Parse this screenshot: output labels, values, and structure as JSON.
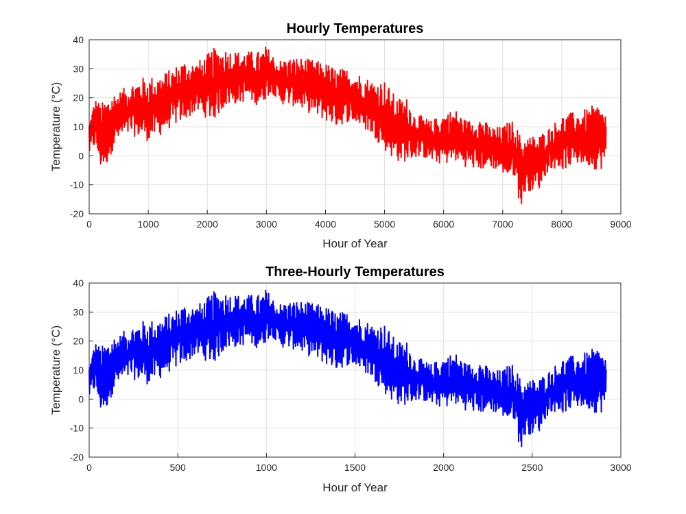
{
  "chart_data": [
    {
      "type": "line",
      "title": "Hourly Temperatures",
      "xlabel": "Hour of Year",
      "ylabel": "Temperature (°C)",
      "xlim": [
        0,
        9000
      ],
      "ylim": [
        -20,
        40
      ],
      "xticks": [
        0,
        1000,
        2000,
        3000,
        4000,
        5000,
        6000,
        7000,
        8000,
        9000
      ],
      "yticks": [
        -20,
        -10,
        0,
        10,
        20,
        30,
        40
      ],
      "grid": true,
      "series": [
        {
          "color": "#ff0000",
          "envelope_x": [
            0,
            100,
            200,
            300,
            400,
            500,
            700,
            900,
            1000,
            1200,
            1400,
            1600,
            1800,
            2000,
            2100,
            2300,
            2500,
            2700,
            2900,
            3000,
            3100,
            3200,
            3500,
            3800,
            4000,
            4200,
            4400,
            4600,
            4800,
            5000,
            5200,
            5400,
            5500,
            5600,
            5800,
            6000,
            6200,
            6400,
            6600,
            6800,
            7000,
            7100,
            7200,
            7300,
            7400,
            7600,
            7800,
            8000,
            8200,
            8400,
            8600,
            8750
          ],
          "envelope_min": [
            0,
            3,
            -5,
            -3,
            2,
            5,
            7,
            6,
            5,
            7,
            10,
            12,
            15,
            13,
            12,
            17,
            18,
            19,
            17,
            20,
            22,
            18,
            17,
            14,
            12,
            10,
            12,
            10,
            7,
            2,
            -2,
            -2,
            -1,
            0,
            -2,
            -3,
            -2,
            -4,
            -5,
            -4,
            -6,
            -8,
            -7,
            -18,
            -12,
            -12,
            -4,
            -5,
            -3,
            -3,
            -5,
            -4
          ],
          "envelope_max": [
            12,
            20,
            18,
            20,
            22,
            22,
            25,
            27,
            27,
            28,
            30,
            33,
            32,
            35,
            37,
            37,
            36,
            36,
            36,
            38,
            35,
            33,
            34,
            33,
            32,
            30,
            30,
            28,
            26,
            26,
            20,
            20,
            15,
            14,
            12,
            15,
            16,
            12,
            14,
            10,
            10,
            12,
            12,
            7,
            7,
            7,
            10,
            14,
            15,
            16,
            18,
            15
          ],
          "end_value": 10
        }
      ]
    },
    {
      "type": "line",
      "title": "Three-Hourly Temperatures",
      "xlabel": "Hour of Year",
      "ylabel": "Temperature (°C)",
      "xlim": [
        0,
        3000
      ],
      "ylim": [
        -20,
        40
      ],
      "xticks": [
        0,
        500,
        1000,
        1500,
        2000,
        2500,
        3000
      ],
      "yticks": [
        -20,
        -10,
        0,
        10,
        20,
        30,
        40
      ],
      "grid": true,
      "series": [
        {
          "color": "#0000ff",
          "envelope_x": [
            0,
            33,
            67,
            100,
            133,
            167,
            233,
            300,
            333,
            400,
            467,
            533,
            600,
            667,
            700,
            767,
            833,
            900,
            967,
            1000,
            1033,
            1067,
            1167,
            1267,
            1333,
            1400,
            1467,
            1533,
            1600,
            1667,
            1733,
            1800,
            1833,
            1867,
            1933,
            2000,
            2067,
            2133,
            2200,
            2267,
            2333,
            2367,
            2400,
            2433,
            2467,
            2533,
            2600,
            2667,
            2733,
            2800,
            2867,
            2917
          ],
          "envelope_min": [
            0,
            3,
            -5,
            -3,
            2,
            5,
            7,
            6,
            5,
            7,
            10,
            12,
            15,
            13,
            12,
            17,
            18,
            19,
            17,
            20,
            22,
            18,
            17,
            14,
            12,
            10,
            12,
            10,
            7,
            2,
            -2,
            -2,
            -1,
            0,
            -2,
            -3,
            -2,
            -4,
            -5,
            -4,
            -6,
            -8,
            -7,
            -18,
            -12,
            -12,
            -4,
            -5,
            -3,
            -3,
            -5,
            -4
          ],
          "envelope_max": [
            12,
            20,
            18,
            20,
            22,
            22,
            25,
            27,
            27,
            28,
            30,
            33,
            32,
            35,
            37,
            37,
            36,
            36,
            36,
            38,
            35,
            33,
            34,
            33,
            32,
            30,
            30,
            28,
            26,
            26,
            20,
            20,
            15,
            14,
            12,
            15,
            16,
            12,
            14,
            10,
            10,
            12,
            12,
            7,
            7,
            7,
            10,
            14,
            15,
            16,
            18,
            15
          ],
          "end_value": 10
        }
      ]
    }
  ]
}
